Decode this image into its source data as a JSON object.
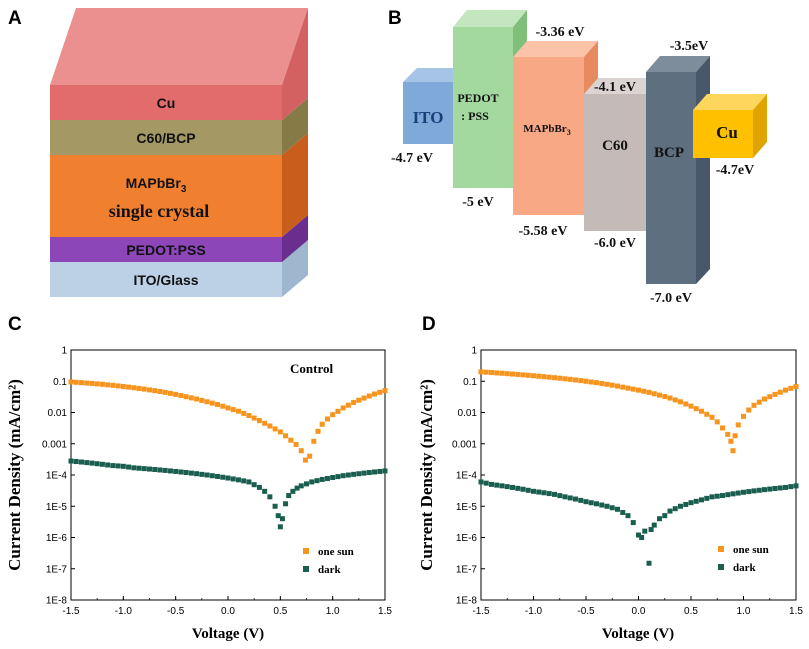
{
  "panels": {
    "a": {
      "letter": "A",
      "layers": {
        "cu": "Cu",
        "c60bcp": "C60/BCP",
        "mapbbr3_main": "MAPbBr",
        "mapbbr3_sub": "3",
        "mapbbr3_line2": "single crystal",
        "pedot": "PEDOT:PSS",
        "ito": "ITO/Glass"
      },
      "colors": {
        "cu": "#e56a6a",
        "c60bcp": "#a39a66",
        "mapbbr3": "#f07e32",
        "pedot": "#8a44b6",
        "ito": "#bfd3e8"
      }
    },
    "b": {
      "letter": "B",
      "materials": {
        "ito": "ITO",
        "pedot_l1": "PEDOT",
        "pedot_l2": ": PSS",
        "mapbbr3": "MAPbBr",
        "mapbbr3_sub": "3",
        "c60": "C60",
        "bcp": "BCP",
        "cu": "Cu"
      },
      "levels": {
        "ito": "-4.7 eV",
        "pedot": "-5 eV",
        "map_top": "-3.36 eV",
        "map_bottom": "-5.58 eV",
        "c60_top": "-4.1 eV",
        "c60_bottom": "-6.0 eV",
        "bcp_top": "-3.5eV",
        "bcp_bottom": "-7.0 eV",
        "cu": "-4.7eV"
      },
      "colors": {
        "ito": "#7ba7d9",
        "pedot": "#9fd69a",
        "mapbbr3": "#f7a47e",
        "c60": "#c2b8b6",
        "bcp": "#5c6e7e",
        "cu": "#ffc000"
      }
    }
  },
  "chart_data": [
    {
      "panel": "C",
      "type": "scatter",
      "yscale": "log",
      "title": "",
      "annotation": "Control",
      "xlabel": "Voltage (V)",
      "ylabel": "Current Density (mA/cm²)",
      "xlim": [
        -1.5,
        1.5
      ],
      "ylim": [
        1e-08,
        1
      ],
      "xticks": [
        "-1.5",
        "-1.0",
        "-0.5",
        "0.0",
        "0.5",
        "1.0",
        "1.5"
      ],
      "yticks": [
        "1",
        "0.1",
        "0.01",
        "0.001",
        "1E-4",
        "1E-5",
        "1E-6",
        "1E-7",
        "1E-8"
      ],
      "legend": "bottom-right",
      "series": [
        {
          "name": "one sun",
          "color": "#f7941d",
          "voc": 0.76,
          "points_x": [
            -1.5,
            -1.4,
            -1.3,
            -1.2,
            -1.1,
            -1.0,
            -0.9,
            -0.8,
            -0.7,
            -0.6,
            -0.5,
            -0.4,
            -0.3,
            -0.2,
            -0.1,
            0.0,
            0.1,
            0.2,
            0.3,
            0.4,
            0.5,
            0.55,
            0.6,
            0.65,
            0.7,
            0.74,
            0.78,
            0.82,
            0.86,
            0.9,
            0.95,
            1.0,
            1.1,
            1.2,
            1.3,
            1.4,
            1.5
          ],
          "points_y": [
            0.095,
            0.09,
            0.085,
            0.08,
            0.074,
            0.068,
            0.062,
            0.056,
            0.05,
            0.044,
            0.038,
            0.032,
            0.027,
            0.022,
            0.018,
            0.014,
            0.011,
            0.008,
            0.0055,
            0.0037,
            0.0024,
            0.0018,
            0.0013,
            0.00095,
            0.0006,
            0.0003,
            0.0004,
            0.0012,
            0.0025,
            0.0042,
            0.0062,
            0.0085,
            0.014,
            0.021,
            0.029,
            0.039,
            0.05
          ]
        },
        {
          "name": "dark",
          "color": "#1a5e4f",
          "points_x": [
            -1.5,
            -1.4,
            -1.3,
            -1.2,
            -1.1,
            -1.0,
            -0.9,
            -0.8,
            -0.7,
            -0.6,
            -0.5,
            -0.4,
            -0.3,
            -0.2,
            -0.1,
            0.0,
            0.1,
            0.2,
            0.3,
            0.35,
            0.4,
            0.45,
            0.48,
            0.5,
            0.52,
            0.55,
            0.58,
            0.62,
            0.66,
            0.7,
            0.75,
            0.8,
            0.9,
            1.0,
            1.1,
            1.2,
            1.3,
            1.4,
            1.5
          ],
          "points_y": [
            0.00028,
            0.00026,
            0.00024,
            0.00022,
            0.0002,
            0.00019,
            0.00017,
            0.00016,
            0.00015,
            0.00014,
            0.00013,
            0.00012,
            0.00011,
            0.0001,
            9e-05,
            8e-05,
            7e-05,
            6e-05,
            4e-05,
            3e-05,
            2e-05,
            1e-05,
            5e-06,
            2.2e-06,
            4e-06,
            1.2e-05,
            2.2e-05,
            3e-05,
            3.8e-05,
            4.5e-05,
            5.2e-05,
            6e-05,
            7.2e-05,
            8.3e-05,
            9.5e-05,
            0.000105,
            0.000115,
            0.000125,
            0.000135
          ]
        }
      ]
    },
    {
      "panel": "D",
      "type": "scatter",
      "yscale": "log",
      "title": "",
      "xlabel": "Voltage (V)",
      "ylabel": "Current Density (mA/cm²)",
      "xlim": [
        -1.5,
        1.5
      ],
      "ylim": [
        1e-08,
        1
      ],
      "xticks": [
        "-1.5",
        "-1.0",
        "-0.5",
        "0.0",
        "0.5",
        "1.0",
        "1.5"
      ],
      "yticks": [
        "1",
        "0.1",
        "0.01",
        "0.001",
        "1E-4",
        "1E-5",
        "1E-6",
        "1E-7",
        "1E-8"
      ],
      "legend": "bottom-right",
      "series": [
        {
          "name": "one sun",
          "color": "#f7941d",
          "points_x": [
            -1.5,
            -1.4,
            -1.3,
            -1.2,
            -1.1,
            -1.0,
            -0.9,
            -0.8,
            -0.7,
            -0.6,
            -0.5,
            -0.4,
            -0.3,
            -0.2,
            -0.1,
            0.0,
            0.1,
            0.2,
            0.3,
            0.4,
            0.5,
            0.6,
            0.7,
            0.75,
            0.8,
            0.85,
            0.88,
            0.9,
            0.92,
            0.95,
            1.0,
            1.05,
            1.1,
            1.2,
            1.3,
            1.4,
            1.5
          ],
          "points_y": [
            0.2,
            0.19,
            0.18,
            0.17,
            0.16,
            0.15,
            0.14,
            0.13,
            0.12,
            0.11,
            0.1,
            0.09,
            0.08,
            0.07,
            0.06,
            0.052,
            0.044,
            0.036,
            0.029,
            0.022,
            0.016,
            0.011,
            0.007,
            0.005,
            0.0032,
            0.002,
            0.0012,
            0.0006,
            0.0018,
            0.004,
            0.0075,
            0.012,
            0.017,
            0.027,
            0.038,
            0.052,
            0.068
          ]
        },
        {
          "name": "dark",
          "color": "#1a5e4f",
          "points_x": [
            -1.5,
            -1.4,
            -1.3,
            -1.2,
            -1.1,
            -1.0,
            -0.9,
            -0.8,
            -0.7,
            -0.6,
            -0.5,
            -0.4,
            -0.3,
            -0.2,
            -0.1,
            -0.05,
            0.0,
            0.03,
            0.06,
            0.1,
            0.12,
            0.15,
            0.2,
            0.25,
            0.3,
            0.4,
            0.5,
            0.6,
            0.7,
            0.8,
            0.9,
            1.0,
            1.1,
            1.2,
            1.3,
            1.4,
            1.5
          ],
          "points_y": [
            6e-05,
            5e-05,
            4.5e-05,
            4e-05,
            3.5e-05,
            3e-05,
            2.7e-05,
            2.4e-05,
            2e-05,
            1.7e-05,
            1.4e-05,
            1.2e-05,
            1e-05,
            8e-06,
            5e-06,
            3e-06,
            1.2e-06,
            1e-06,
            1.6e-06,
            1.5e-07,
            1.8e-06,
            2.5e-06,
            4e-06,
            5e-06,
            7e-06,
            1e-05,
            1.3e-05,
            1.6e-05,
            2e-05,
            2.2e-05,
            2.5e-05,
            2.8e-05,
            3.1e-05,
            3.4e-05,
            3.7e-05,
            4e-05,
            4.5e-05
          ]
        }
      ]
    }
  ]
}
